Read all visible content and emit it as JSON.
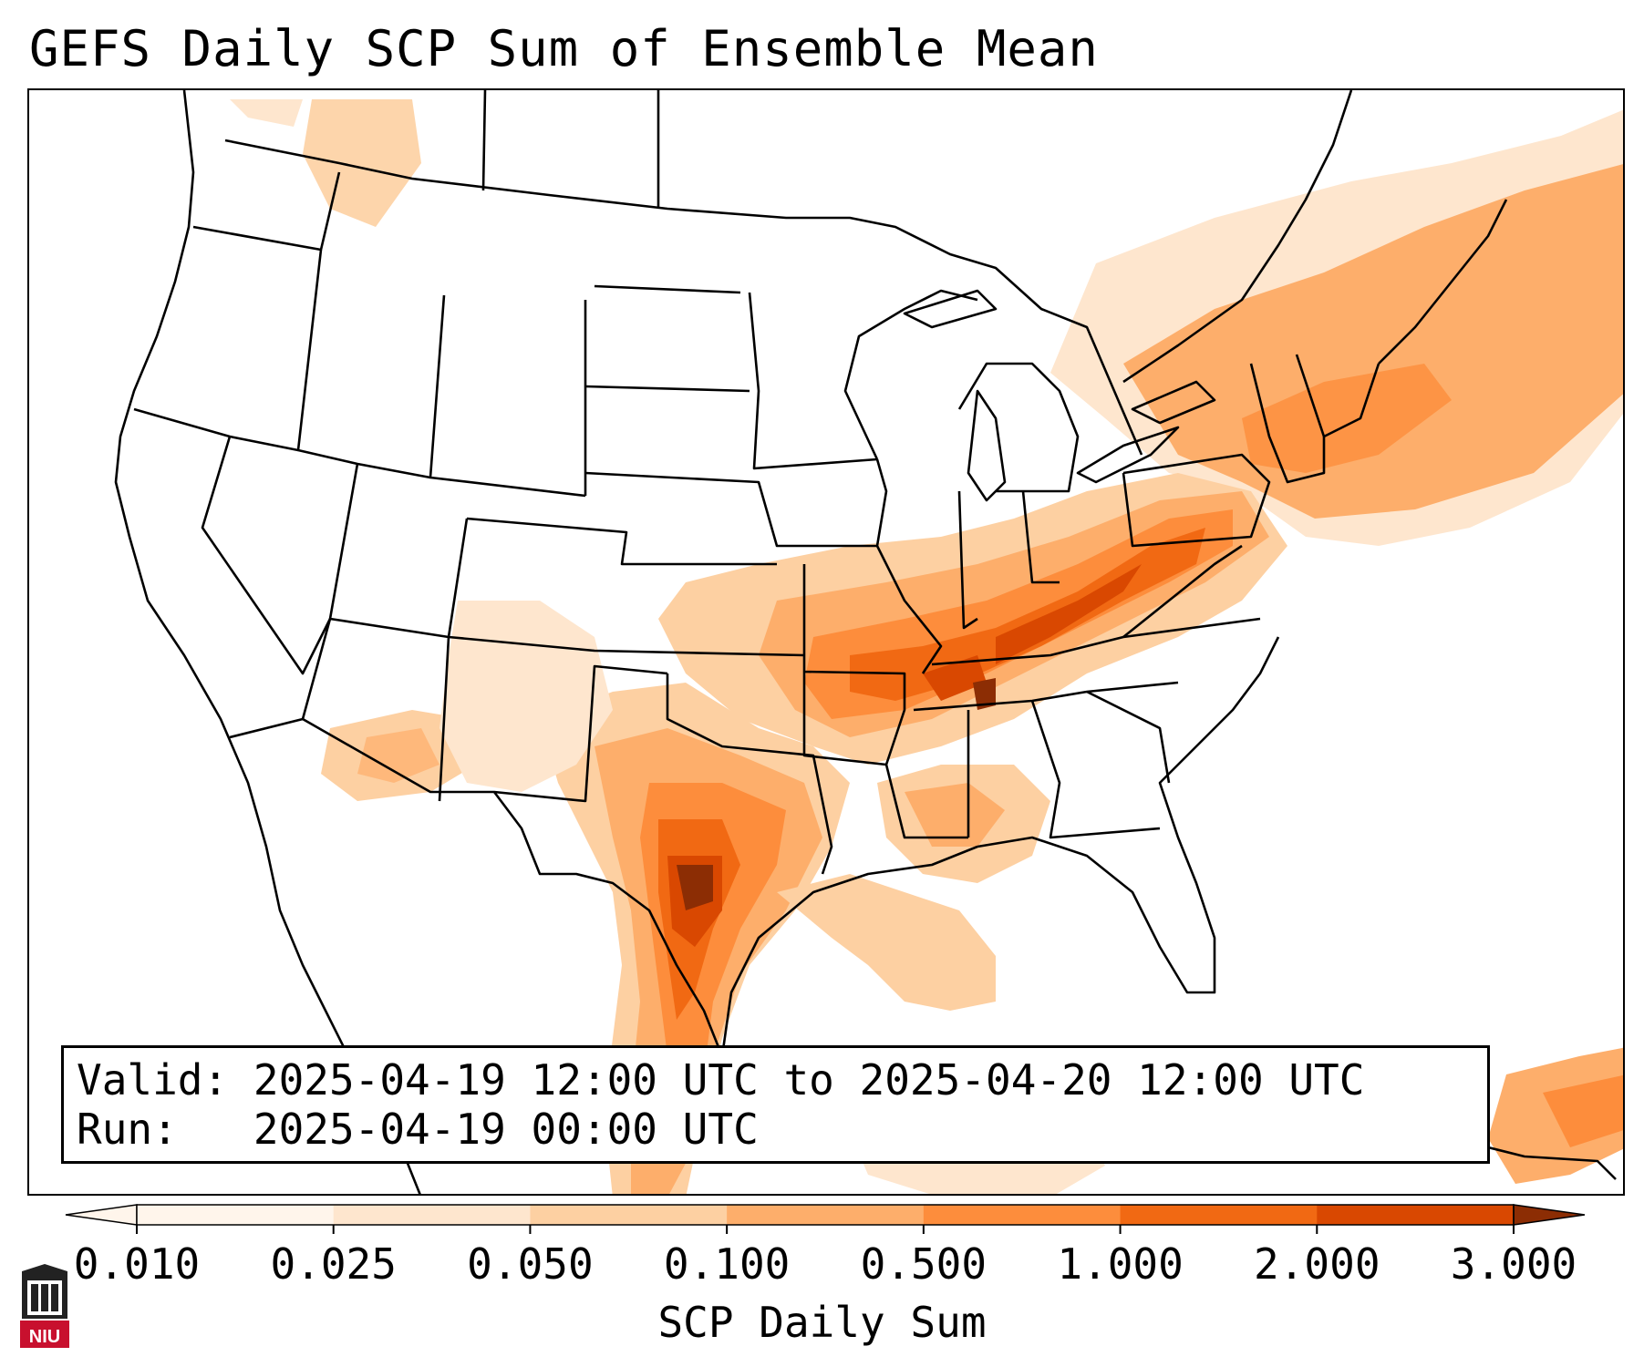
{
  "title": "GEFS Daily SCP Sum of Ensemble Mean",
  "info": {
    "valid_label": "Valid:",
    "valid_value": "2025-04-19 12:00 UTC to 2025-04-20 12:00 UTC",
    "run_label": "Run:",
    "run_value": "2025-04-19 00:00 UTC"
  },
  "colorbar": {
    "label": "SCP Daily Sum",
    "ticks": [
      "0.010",
      "0.025",
      "0.050",
      "0.100",
      "0.500",
      "1.000",
      "2.000",
      "3.000"
    ],
    "colors": [
      "#fff5eb",
      "#fee6ce",
      "#fdd0a2",
      "#fdae6b",
      "#fd8d3c",
      "#f16913",
      "#d94801",
      "#8c2d04"
    ]
  },
  "logo": {
    "text": "NIU",
    "color": "#c8102e"
  }
}
